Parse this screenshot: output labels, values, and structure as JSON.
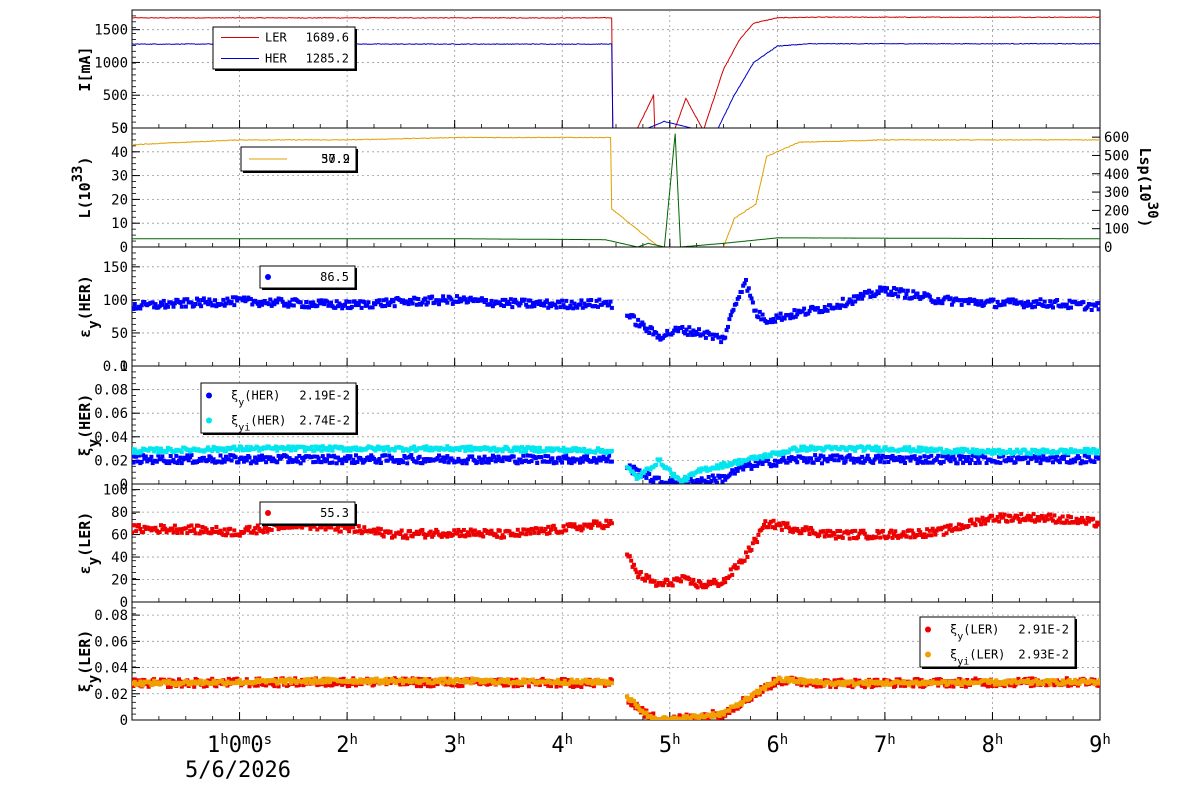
{
  "chart_data": [
    {
      "type": "line",
      "ylabel": "I[mA]",
      "ylim": [
        0,
        1800
      ],
      "y_ticks": [
        "0",
        "500",
        "1000",
        "1500"
      ],
      "legend": [
        {
          "label": "LER",
          "value": "1689.6",
          "color": "#d40000"
        },
        {
          "label": "HER",
          "value": "1285.2",
          "color": "#0000cc"
        }
      ],
      "series": [
        {
          "name": "LER",
          "color": "#d40000",
          "x": [
            0,
            4.46,
            4.47,
            4.7,
            4.85,
            4.86,
            4.9,
            4.93,
            5.05,
            5.15,
            5.3,
            5.32,
            5.5,
            5.65,
            5.78,
            6.0,
            6.3,
            9.0
          ],
          "values": [
            1680,
            1680,
            0,
            0,
            500,
            0,
            0,
            0,
            0,
            450,
            0,
            0,
            900,
            1350,
            1600,
            1680,
            1690,
            1690
          ]
        },
        {
          "name": "HER",
          "color": "#0000cc",
          "x": [
            0,
            4.46,
            4.47,
            4.8,
            4.95,
            5.2,
            5.45,
            5.6,
            5.78,
            6.0,
            6.3,
            9.0
          ],
          "values": [
            1280,
            1280,
            0,
            0,
            100,
            0,
            0,
            500,
            1000,
            1250,
            1285,
            1285
          ]
        }
      ]
    },
    {
      "type": "line",
      "ylabel": "L(10",
      "ylabel_sup": "33",
      "ylabel_end": ")",
      "y2label": "Lsp(10",
      "y2label_sup": "30",
      "y2label_end": ")",
      "ylim": [
        0,
        50
      ],
      "y_ticks": [
        "0",
        "10",
        "20",
        "30",
        "40",
        "50"
      ],
      "y2lim": [
        0,
        650
      ],
      "y2_ticks": [
        "0",
        "100",
        "200",
        "300",
        "400",
        "500",
        "600"
      ],
      "legend": [
        {
          "label": "",
          "value": "37.9",
          "color": "#e0a000"
        }
      ],
      "legend_overlap_value": "50.2",
      "series": [
        {
          "name": "L",
          "color": "#e0a000",
          "x": [
            0,
            1.0,
            2.0,
            3.0,
            4.0,
            4.45,
            4.46,
            4.9,
            5.1,
            5.5,
            5.6,
            5.8,
            5.9,
            6.2,
            7.0,
            8.0,
            9.0
          ],
          "values": [
            43,
            45,
            45,
            46,
            46,
            46,
            16,
            0,
            0,
            0,
            12,
            18,
            38,
            44,
            45,
            45,
            45
          ]
        },
        {
          "name": "Lsp",
          "color": "#006600",
          "axis": "right",
          "x": [
            0,
            3.0,
            4.4,
            4.7,
            4.8,
            4.95,
            5.05,
            5.1,
            5.5,
            6.0,
            9.0
          ],
          "values": [
            45,
            45,
            40,
            0,
            20,
            0,
            620,
            0,
            20,
            50,
            45
          ]
        }
      ]
    },
    {
      "type": "scatter",
      "ylabel": "ε",
      "ylabel_sub": "y",
      "ylabel_end": "(HER)",
      "ylim": [
        0,
        180
      ],
      "y_ticks": [
        "0",
        "50",
        "100",
        "150"
      ],
      "legend": [
        {
          "label": "",
          "value": "86.5",
          "color": "#0000ff"
        }
      ],
      "series": [
        {
          "name": "",
          "color": "#0000ff",
          "x": [
            0,
            0.5,
            1.0,
            1.5,
            2.0,
            2.5,
            3.0,
            3.5,
            4.0,
            4.45,
            4.75,
            4.9,
            5.1,
            5.3,
            5.5,
            5.6,
            5.7,
            5.8,
            5.9,
            6.2,
            6.5,
            7.0,
            7.5,
            8.0,
            8.5,
            9.0
          ],
          "values": [
            90,
            95,
            98,
            95,
            92,
            97,
            100,
            95,
            93,
            95,
            60,
            45,
            55,
            50,
            40,
            90,
            130,
            80,
            70,
            80,
            90,
            115,
            100,
            95,
            95,
            90
          ]
        }
      ]
    },
    {
      "type": "scatter",
      "ylabel": "ξ",
      "ylabel_sub": "y",
      "ylabel_end": "(HER)",
      "ylim": [
        0,
        0.1
      ],
      "y_ticks": [
        "0",
        "0.02",
        "0.04",
        "0.06",
        "0.08",
        "0.1"
      ],
      "legend": [
        {
          "label": "ξ",
          "label_sub": "y",
          "label_end": "(HER)",
          "value": "2.19E-2",
          "color": "#0000ff"
        },
        {
          "label": "ξ",
          "label_sub": "yi",
          "label_end": "(HER)",
          "value": "2.74E-2",
          "color": "#00e5ee"
        }
      ],
      "series": [
        {
          "name": "ξy(HER)",
          "color": "#0000ff",
          "x": [
            0,
            1.0,
            2.0,
            3.0,
            4.0,
            4.45,
            4.9,
            5.0,
            5.5,
            5.7,
            5.9,
            6.2,
            7.0,
            8.0,
            9.0
          ],
          "values": [
            0.021,
            0.021,
            0.021,
            0.021,
            0.021,
            0.021,
            0.002,
            0.0,
            0.005,
            0.015,
            0.018,
            0.021,
            0.021,
            0.021,
            0.021
          ]
        },
        {
          "name": "ξyi(HER)",
          "color": "#00e5ee",
          "x": [
            0,
            1.0,
            2.0,
            3.0,
            4.0,
            4.45,
            4.7,
            4.9,
            5.1,
            5.3,
            5.6,
            5.9,
            6.2,
            7.0,
            8.0,
            9.0
          ],
          "values": [
            0.028,
            0.03,
            0.03,
            0.03,
            0.029,
            0.028,
            0.005,
            0.02,
            0.002,
            0.012,
            0.018,
            0.024,
            0.03,
            0.03,
            0.027,
            0.028
          ]
        }
      ]
    },
    {
      "type": "scatter",
      "ylabel": "ε",
      "ylabel_sub": "y",
      "ylabel_end": "(LER)",
      "ylim": [
        0,
        105
      ],
      "y_ticks": [
        "0",
        "20",
        "40",
        "60",
        "80",
        "100"
      ],
      "legend": [
        {
          "label": "",
          "value": "55.3",
          "color": "#ee0000"
        }
      ],
      "series": [
        {
          "name": "",
          "color": "#ee0000",
          "x": [
            0,
            0.5,
            1.0,
            1.5,
            2.0,
            2.5,
            3.0,
            3.5,
            4.0,
            4.45,
            4.7,
            4.9,
            5.1,
            5.3,
            5.5,
            5.7,
            5.9,
            6.2,
            6.5,
            7.0,
            7.5,
            8.0,
            8.5,
            9.0
          ],
          "values": [
            65,
            65,
            62,
            70,
            65,
            60,
            62,
            60,
            65,
            70,
            25,
            15,
            20,
            15,
            18,
            40,
            70,
            65,
            60,
            60,
            62,
            75,
            75,
            70
          ]
        }
      ]
    },
    {
      "type": "scatter",
      "ylabel": "ξ",
      "ylabel_sub": "y",
      "ylabel_end": "(LER)",
      "ylim": [
        0,
        0.09
      ],
      "y_ticks": [
        "0",
        "0.02",
        "0.04",
        "0.06",
        "0.08"
      ],
      "legend": [
        {
          "label": "ξ",
          "label_sub": "y",
          "label_end": "(LER)",
          "value": "2.91E-2",
          "color": "#ee0000"
        },
        {
          "label": "ξ",
          "label_sub": "yi",
          "label_end": "(LER)",
          "value": "2.93E-2",
          "color": "#f0a000"
        }
      ],
      "series": [
        {
          "name": "ξy(LER)",
          "color": "#ee0000",
          "x": [
            0,
            2.0,
            4.45,
            4.8,
            5.0,
            5.5,
            5.8,
            6.0,
            6.5,
            9.0
          ],
          "values": [
            0.028,
            0.029,
            0.028,
            0.003,
            0.0,
            0.005,
            0.02,
            0.03,
            0.028,
            0.029
          ]
        },
        {
          "name": "ξyi(LER)",
          "color": "#f0a000",
          "x": [
            0,
            2.0,
            4.45,
            4.8,
            5.0,
            5.5,
            5.8,
            6.0,
            6.5,
            9.0
          ],
          "values": [
            0.028,
            0.03,
            0.029,
            0.003,
            0.0,
            0.005,
            0.02,
            0.031,
            0.028,
            0.029
          ]
        }
      ]
    }
  ],
  "x_axis": {
    "xlim": [
      0,
      9
    ],
    "ticks": [
      {
        "value": 1,
        "text": "1",
        "sup": "h",
        "text2": "0",
        "sup2": "m",
        "text3": "0",
        "sup3": "s"
      },
      {
        "value": 2,
        "text": "2",
        "sup": "h"
      },
      {
        "value": 3,
        "text": "3",
        "sup": "h"
      },
      {
        "value": 4,
        "text": "4",
        "sup": "h"
      },
      {
        "value": 5,
        "text": "5",
        "sup": "h"
      },
      {
        "value": 6,
        "text": "6",
        "sup": "h"
      },
      {
        "value": 7,
        "text": "7",
        "sup": "h"
      },
      {
        "value": 8,
        "text": "8",
        "sup": "h"
      },
      {
        "value": 9,
        "text": "9",
        "sup": "h"
      }
    ],
    "date": "5/6/2026"
  }
}
